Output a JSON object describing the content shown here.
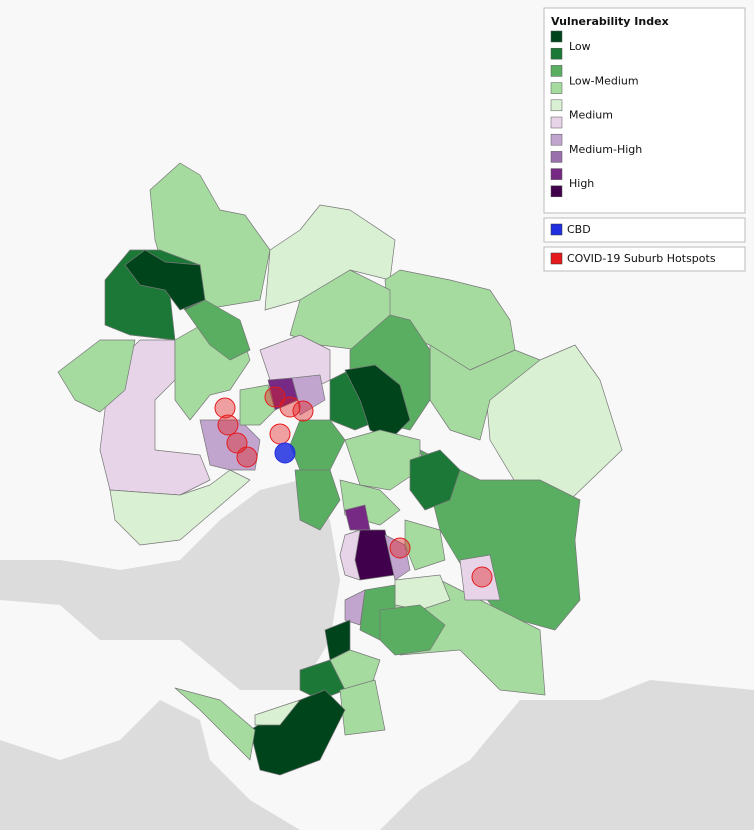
{
  "legend": {
    "title": "Vulnerability Index",
    "labels": [
      "Low",
      "Low-Medium",
      "Medium",
      "Medium-High",
      "High"
    ],
    "colors": [
      "#00441b",
      "#1b7837",
      "#5aae61",
      "#a6dba0",
      "#d9f0d3",
      "#e7d4e8",
      "#c2a5cf",
      "#9970ab",
      "#762a83",
      "#40004b"
    ]
  },
  "cbd": {
    "label": "CBD",
    "color": "#1f2fe0"
  },
  "hotspots": {
    "label": "COVID-19 Suburb Hotspots",
    "color": "#e41a1c"
  }
}
